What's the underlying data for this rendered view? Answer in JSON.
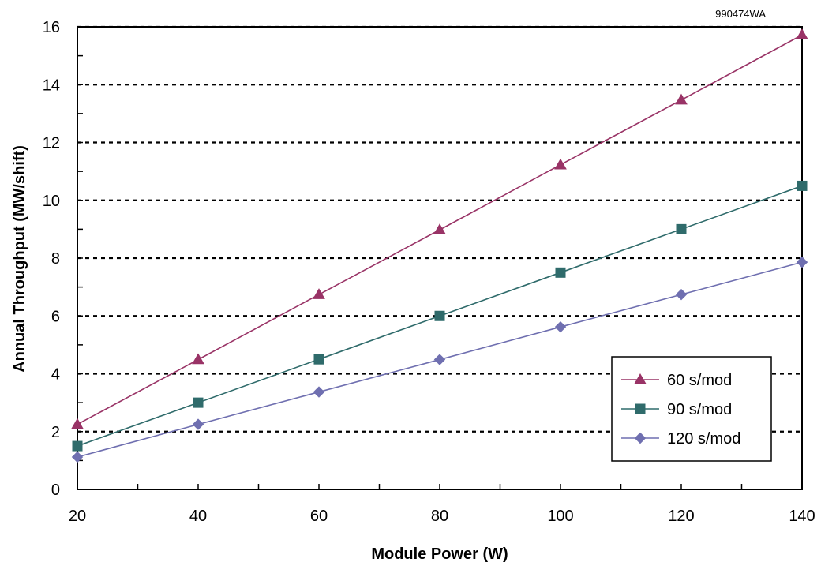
{
  "figure_id": "990474WA",
  "chart_data": {
    "type": "line",
    "xlabel": "Module Power (W)",
    "ylabel": "Annual Throughput (MW/shift)",
    "x": [
      20,
      40,
      60,
      80,
      100,
      120,
      140
    ],
    "xlim": [
      20,
      140
    ],
    "ylim": [
      0,
      16
    ],
    "x_ticks": [
      "20",
      "40",
      "60",
      "80",
      "100",
      "120",
      "140"
    ],
    "y_ticks": [
      "0",
      "2",
      "4",
      "6",
      "8",
      "10",
      "12",
      "14",
      "16"
    ],
    "x_minor_step": 10,
    "y_minor_step": 1,
    "grid": "horizontal dotted",
    "legend_position": "bottom-right",
    "series": [
      {
        "name": "60 s/mod",
        "values": [
          2.25,
          4.49,
          6.74,
          8.98,
          11.23,
          13.47,
          15.72
        ],
        "color": "#993366",
        "marker": "triangle"
      },
      {
        "name": "90 s/mod",
        "values": [
          1.5,
          3.0,
          4.5,
          6.0,
          7.5,
          9.0,
          10.5
        ],
        "color": "#2f6b6b",
        "marker": "square"
      },
      {
        "name": "120 s/mod",
        "values": [
          1.12,
          2.25,
          3.37,
          4.49,
          5.62,
          6.74,
          7.86
        ],
        "color": "#6f6fb0",
        "marker": "diamond"
      }
    ]
  }
}
